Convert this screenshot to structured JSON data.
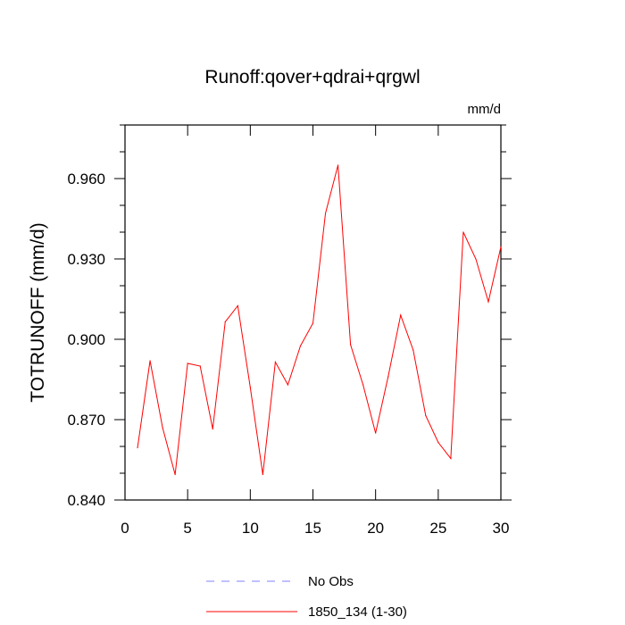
{
  "chart_data": {
    "type": "line",
    "title": "Runoff:qover+qdrai+qrgwl",
    "units_label": "mm/d",
    "ylabel": "TOTRUNOFF  (mm/d)",
    "xlabel": "",
    "xlim": [
      0,
      30
    ],
    "ylim": [
      0.84,
      0.98
    ],
    "x_ticks": [
      0,
      5,
      10,
      15,
      20,
      25,
      30
    ],
    "x_tick_labels": [
      "0",
      "5",
      "10",
      "15",
      "20",
      "25",
      "30"
    ],
    "y_ticks": [
      0.84,
      0.87,
      0.9,
      0.93,
      0.96
    ],
    "y_tick_labels": [
      "0.840",
      "0.870",
      "0.900",
      "0.930",
      "0.960"
    ],
    "grid": false,
    "legend_position": "bottom-center",
    "series": [
      {
        "name": "No Obs",
        "color": "#8080ff",
        "dashed": true,
        "x": [],
        "values": []
      },
      {
        "name": "1850_134 (1-30)",
        "color": "#ff0000",
        "dashed": false,
        "x": [
          1,
          2,
          3,
          4,
          5,
          6,
          7,
          8,
          9,
          10,
          11,
          12,
          13,
          14,
          15,
          16,
          17,
          18,
          19,
          20,
          21,
          22,
          23,
          24,
          25,
          26,
          27,
          28,
          29,
          30
        ],
        "values": [
          0.8595,
          0.892,
          0.867,
          0.8495,
          0.891,
          0.89,
          0.8665,
          0.9065,
          0.9125,
          0.882,
          0.8495,
          0.8915,
          0.883,
          0.8975,
          0.906,
          0.947,
          0.965,
          0.898,
          0.883,
          0.865,
          0.886,
          0.909,
          0.896,
          0.8715,
          0.8615,
          0.8555,
          0.94,
          0.93,
          0.914,
          0.9345
        ]
      }
    ]
  }
}
